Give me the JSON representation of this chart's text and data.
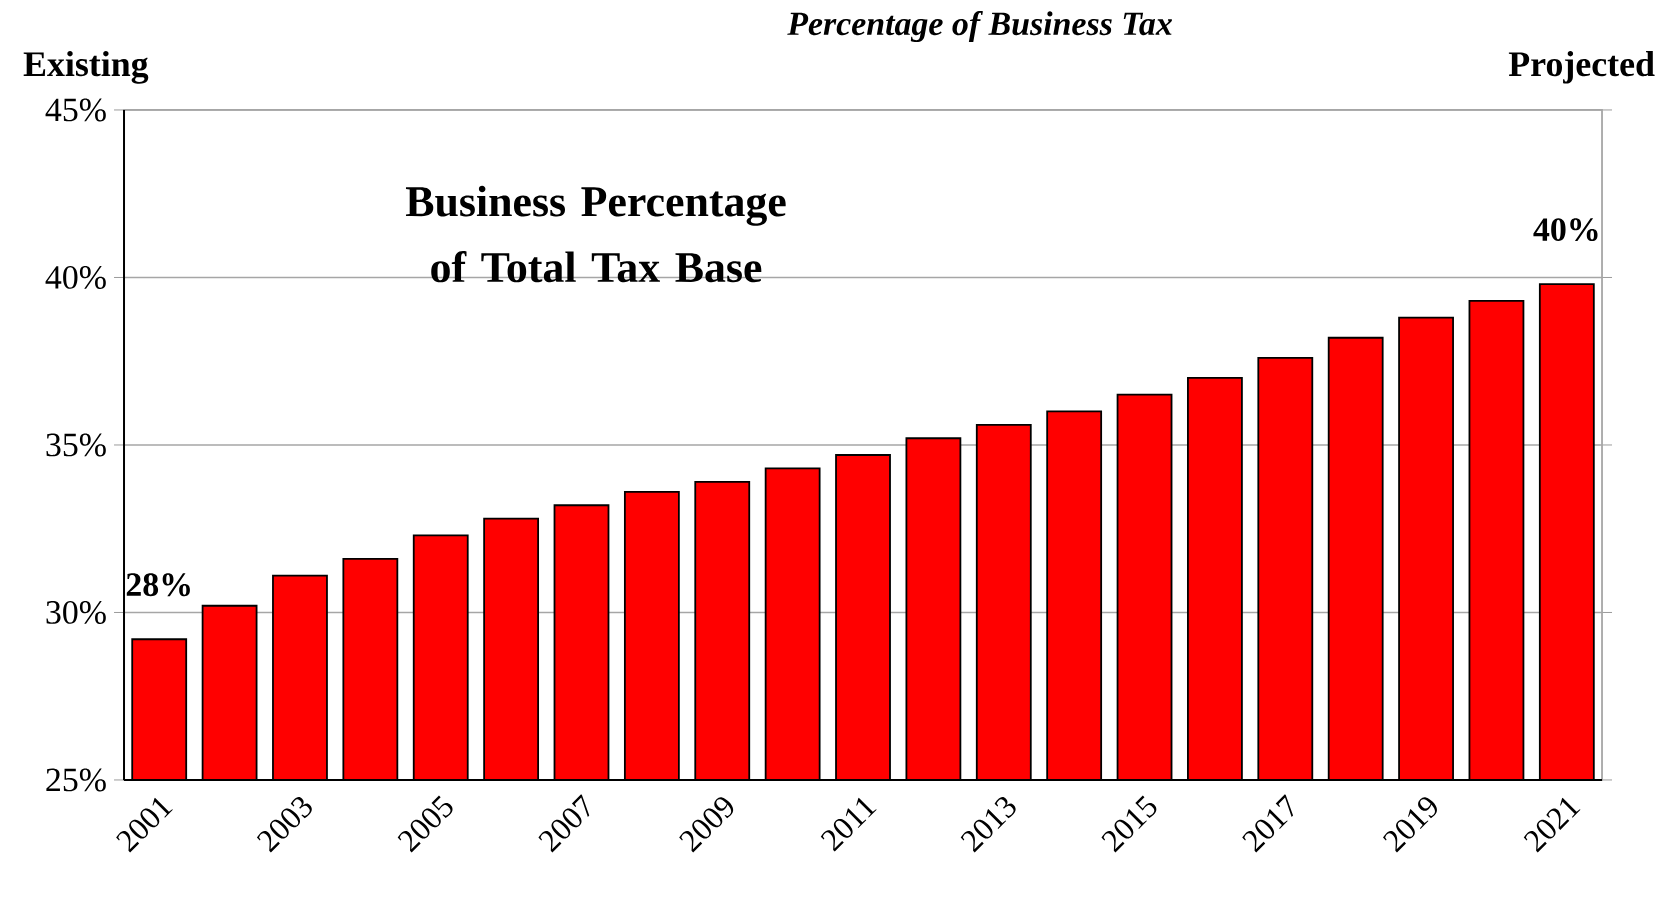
{
  "chart_data": {
    "type": "bar",
    "title": "Percentage of Business Tax",
    "categories": [
      "2001",
      null,
      "2003",
      null,
      "2005",
      null,
      "2007",
      null,
      "2009",
      null,
      "2011",
      null,
      "2013",
      null,
      "2015",
      null,
      "2017",
      null,
      "2019",
      null,
      "2021"
    ],
    "values": [
      29.2,
      30.2,
      31.1,
      31.6,
      32.3,
      32.8,
      33.2,
      33.6,
      33.9,
      34.3,
      34.7,
      35.2,
      35.6,
      36.0,
      36.5,
      37.0,
      37.6,
      38.2,
      38.8,
      39.3,
      39.8
    ],
    "color": "#ff0000",
    "ylim": [
      25,
      45
    ],
    "yticks": [
      {
        "value": 25,
        "label": "25%"
      },
      {
        "value": 30,
        "label": "30%"
      },
      {
        "value": 35,
        "label": "35%"
      },
      {
        "value": 40,
        "label": "40%"
      },
      {
        "value": 45,
        "label": "45%"
      }
    ],
    "grid": "y",
    "annotations": [
      "Existing",
      "Projected",
      "Business Percentage of Total Tax Base",
      {
        "text": "28%",
        "x": "2001",
        "y": 29.2
      },
      {
        "text": "40%",
        "x": "2021",
        "y": 39.8
      }
    ]
  }
}
